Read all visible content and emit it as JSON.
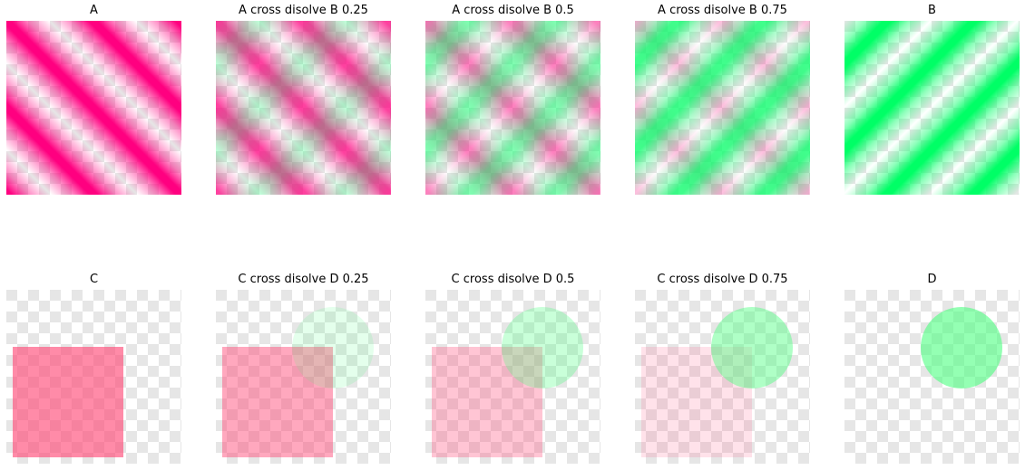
{
  "colors": {
    "a": "#ff0080",
    "b": "#00ff66",
    "checker_light": "#ffffff",
    "checker_dark": "#e6e6e6",
    "square": "#ff4d7a",
    "circle": "#4dff80"
  },
  "rows": [
    {
      "panels": [
        {
          "title": "A",
          "type": "stripes",
          "mix": 0
        },
        {
          "title": "A cross disolve B 0.25",
          "type": "stripes",
          "mix": 0.25
        },
        {
          "title": "A cross disolve B 0.5",
          "type": "stripes",
          "mix": 0.5
        },
        {
          "title": "A cross disolve B 0.75",
          "type": "stripes",
          "mix": 0.75
        },
        {
          "title": "B",
          "type": "stripes",
          "mix": 1
        }
      ]
    },
    {
      "panels": [
        {
          "title": "C",
          "type": "shapes",
          "mix": 0
        },
        {
          "title": "C cross disolve D 0.25",
          "type": "shapes",
          "mix": 0.25
        },
        {
          "title": "C cross disolve D 0.5",
          "type": "shapes",
          "mix": 0.5
        },
        {
          "title": "C cross disolve D 0.75",
          "type": "shapes",
          "mix": 0.75
        },
        {
          "title": "D",
          "type": "shapes",
          "mix": 1
        }
      ]
    }
  ]
}
